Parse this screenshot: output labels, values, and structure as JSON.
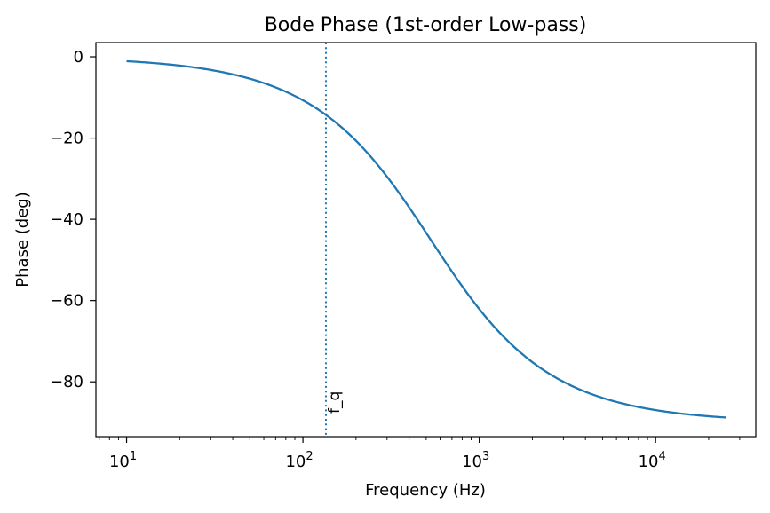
{
  "chart_data": {
    "type": "line",
    "title": "Bode Phase (1st-order Low-pass)",
    "xlabel": "Frequency (Hz)",
    "ylabel": "Phase (deg)",
    "xscale": "log",
    "xlim": [
      6.7,
      37000
    ],
    "ylim": [
      -93.5,
      3.5
    ],
    "grid": false,
    "x_ticks": [
      {
        "base": "10",
        "exp": "1",
        "value": 10
      },
      {
        "base": "10",
        "exp": "2",
        "value": 100
      },
      {
        "base": "10",
        "exp": "3",
        "value": 1000
      },
      {
        "base": "10",
        "exp": "4",
        "value": 10000
      }
    ],
    "y_ticks": [
      {
        "label": "0",
        "value": 0
      },
      {
        "label": "−20",
        "value": -20
      },
      {
        "label": "−40",
        "value": -40
      },
      {
        "label": "−60",
        "value": -60
      },
      {
        "label": "−80",
        "value": -80
      }
    ],
    "series": [
      {
        "cutoff_hz": 530,
        "x_start": 10,
        "x_end": 25000,
        "color": "#1f77b4"
      }
    ],
    "annotations": [
      {
        "label": "f_q",
        "x": 135,
        "style": "dotted",
        "color": "#1f77b4"
      }
    ]
  }
}
